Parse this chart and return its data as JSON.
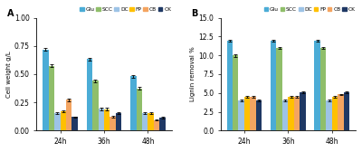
{
  "legend_labels": [
    "Glu",
    "SCC",
    "DC",
    "FP",
    "CB",
    "CK"
  ],
  "colors": [
    "#4BACD6",
    "#8FBE6A",
    "#9DC3E6",
    "#FFC000",
    "#F4A460",
    "#1F3864"
  ],
  "time_labels": [
    "24h",
    "36h",
    "48h"
  ],
  "panel_A": {
    "title": "A",
    "ylabel": "Cell weight g/L",
    "ylim": [
      0.0,
      1.0
    ],
    "yticks": [
      0.0,
      0.25,
      0.5,
      0.75,
      1.0
    ],
    "data": {
      "Glu": [
        0.72,
        0.635,
        0.48
      ],
      "SCC": [
        0.575,
        0.44,
        0.375
      ],
      "DC": [
        0.155,
        0.195,
        0.155
      ],
      "FP": [
        0.175,
        0.19,
        0.155
      ],
      "CB": [
        0.275,
        0.125,
        0.095
      ],
      "CK": [
        0.12,
        0.155,
        0.115
      ]
    },
    "errors": {
      "Glu": [
        0.012,
        0.012,
        0.013
      ],
      "SCC": [
        0.013,
        0.013,
        0.013
      ],
      "DC": [
        0.008,
        0.012,
        0.008
      ],
      "FP": [
        0.008,
        0.01,
        0.008
      ],
      "CB": [
        0.012,
        0.008,
        0.007
      ],
      "CK": [
        0.007,
        0.008,
        0.007
      ]
    }
  },
  "panel_B": {
    "title": "B",
    "ylabel": "Lignin removal %",
    "ylim": [
      0.0,
      15.0
    ],
    "yticks": [
      0.0,
      2.5,
      5.0,
      7.5,
      10.0,
      12.5,
      15.0
    ],
    "data": {
      "Glu": [
        11.9,
        11.9,
        11.9
      ],
      "SCC": [
        10.0,
        11.0,
        11.0
      ],
      "DC": [
        4.0,
        4.0,
        4.0
      ],
      "FP": [
        4.5,
        4.5,
        4.5
      ],
      "CB": [
        4.5,
        4.5,
        4.8
      ],
      "CK": [
        4.0,
        5.1,
        5.1
      ]
    },
    "errors": {
      "Glu": [
        0.13,
        0.11,
        0.11
      ],
      "SCC": [
        0.18,
        0.13,
        0.13
      ],
      "DC": [
        0.1,
        0.1,
        0.1
      ],
      "FP": [
        0.1,
        0.1,
        0.1
      ],
      "CB": [
        0.1,
        0.1,
        0.1
      ],
      "CK": [
        0.1,
        0.13,
        0.1
      ]
    }
  }
}
